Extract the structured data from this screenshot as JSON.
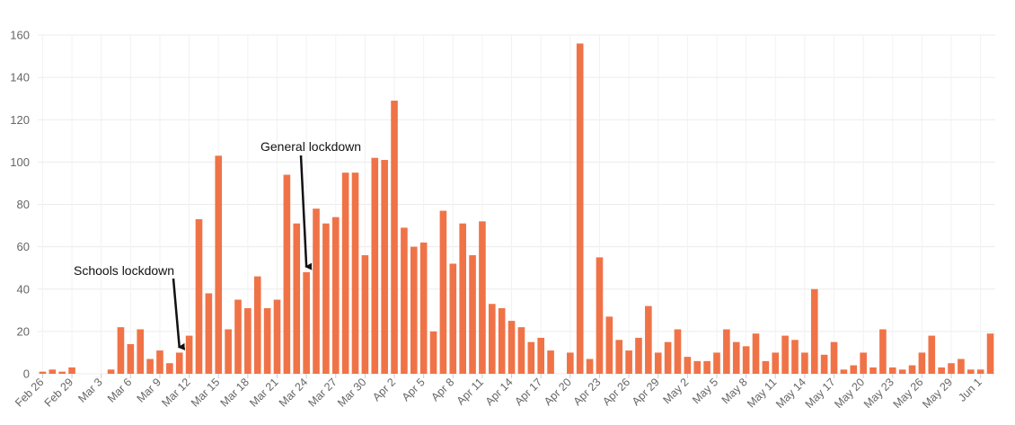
{
  "chart_data": {
    "type": "bar",
    "start_date": "2020-02-26",
    "x_tick_labels": [
      "Feb 26",
      "Feb 29",
      "Mar 3",
      "Mar 6",
      "Mar 9",
      "Mar 12",
      "Mar 15",
      "Mar 18",
      "Mar 21",
      "Mar 24",
      "Mar 27",
      "Mar 30",
      "Apr 2",
      "Apr 5",
      "Apr 8",
      "Apr 11",
      "Apr 14",
      "Apr 17",
      "Apr 20",
      "Apr 23",
      "Apr 26",
      "Apr 29",
      "May 2",
      "May 5",
      "May 8",
      "May 11",
      "May 14",
      "May 17",
      "May 20",
      "May 23",
      "May 26",
      "May 29",
      "Jun 1"
    ],
    "y_ticks": [
      0,
      20,
      40,
      60,
      80,
      100,
      120,
      140,
      160
    ],
    "ylim": [
      0,
      160
    ],
    "values": [
      1,
      2,
      1,
      3,
      0,
      0,
      0,
      2,
      22,
      14,
      21,
      7,
      11,
      5,
      10,
      18,
      73,
      38,
      103,
      21,
      35,
      31,
      46,
      31,
      35,
      94,
      71,
      48,
      78,
      71,
      74,
      95,
      95,
      56,
      102,
      101,
      129,
      69,
      60,
      62,
      20,
      77,
      52,
      71,
      56,
      72,
      33,
      31,
      25,
      22,
      15,
      17,
      11,
      0,
      10,
      156,
      7,
      55,
      27,
      16,
      11,
      17,
      32,
      10,
      15,
      21,
      8,
      6,
      6,
      10,
      21,
      15,
      13,
      19,
      6,
      10,
      18,
      16,
      10,
      40,
      9,
      15,
      2,
      4,
      10,
      3,
      21,
      3,
      2,
      4,
      10,
      18,
      3,
      5,
      7,
      2,
      2,
      19
    ],
    "bar_color": "#f07347",
    "grid": true,
    "annotations": [
      {
        "text": "Schools lockdown",
        "target_date": "Mar 11"
      },
      {
        "text": "General lockdown",
        "target_date": "Mar 24"
      }
    ]
  }
}
